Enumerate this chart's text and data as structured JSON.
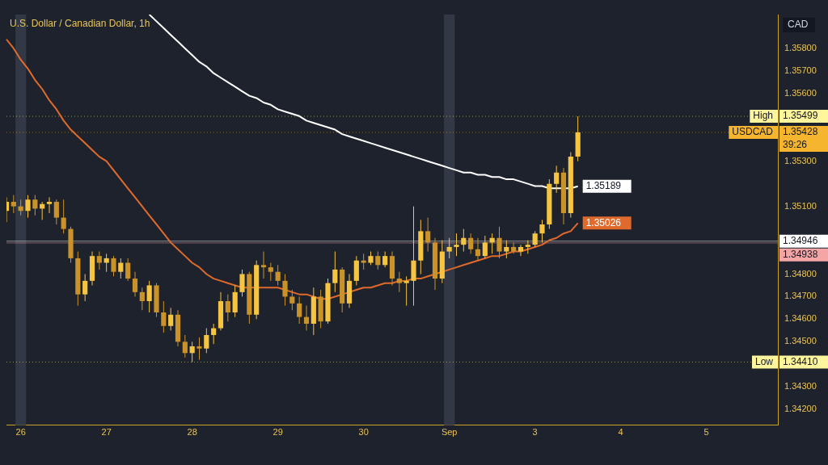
{
  "chart_data": {
    "type": "candlestick",
    "title": "U.S. Dollar / Canadian Dollar, 1h",
    "ylabel": "CAD",
    "categories": [
      null,
      null,
      "26",
      null,
      null,
      null,
      null,
      null,
      null,
      null,
      null,
      null,
      null,
      null,
      "27",
      null,
      null,
      null,
      null,
      null,
      null,
      null,
      null,
      null,
      null,
      null,
      "28",
      null,
      null,
      null,
      null,
      null,
      null,
      null,
      null,
      null,
      null,
      null,
      "29",
      null,
      null,
      null,
      null,
      null,
      null,
      null,
      null,
      null,
      null,
      null,
      "30",
      null,
      null,
      null,
      null,
      null,
      null,
      null,
      null,
      null,
      null,
      null,
      "Sep",
      null,
      null,
      null,
      null,
      null,
      null,
      null,
      null,
      null,
      null,
      null,
      "3",
      null,
      null,
      null,
      null,
      null,
      null,
      null,
      null,
      null,
      null,
      null,
      "4",
      null,
      null,
      null,
      null,
      null,
      null,
      null,
      null,
      null,
      null,
      null,
      "5",
      null,
      null,
      null,
      null,
      null,
      null,
      null,
      null,
      null,
      null
    ],
    "ohlc": [
      [
        1.3508,
        1.3514,
        1.3503,
        1.3512
      ],
      [
        1.3512,
        1.3515,
        1.3507,
        1.351
      ],
      [
        1.351,
        1.3513,
        1.3506,
        1.3508
      ],
      [
        1.3508,
        1.3515,
        1.3505,
        1.3513
      ],
      [
        1.3513,
        1.3515,
        1.3506,
        1.3509
      ],
      [
        1.3509,
        1.3512,
        1.3504,
        1.3511
      ],
      [
        1.3511,
        1.3514,
        1.3507,
        1.3512
      ],
      [
        1.3512,
        1.3513,
        1.3502,
        1.3505
      ],
      [
        1.3505,
        1.3513,
        1.3498,
        1.35
      ],
      [
        1.35,
        1.3501,
        1.3485,
        1.3487
      ],
      [
        1.3487,
        1.349,
        1.3466,
        1.3471
      ],
      [
        1.3471,
        1.348,
        1.3468,
        1.3477
      ],
      [
        1.3477,
        1.349,
        1.3475,
        1.3488
      ],
      [
        1.3488,
        1.349,
        1.3482,
        1.3485
      ],
      [
        1.3485,
        1.3489,
        1.3481,
        1.3487
      ],
      [
        1.3487,
        1.3488,
        1.3479,
        1.3481
      ],
      [
        1.3481,
        1.3487,
        1.3478,
        1.3485
      ],
      [
        1.3485,
        1.3487,
        1.3477,
        1.3478
      ],
      [
        1.3478,
        1.3481,
        1.347,
        1.3472
      ],
      [
        1.3472,
        1.3474,
        1.3464,
        1.3468
      ],
      [
        1.3468,
        1.3477,
        1.3463,
        1.3475
      ],
      [
        1.3475,
        1.3476,
        1.3461,
        1.3463
      ],
      [
        1.3463,
        1.3468,
        1.3454,
        1.3457
      ],
      [
        1.3457,
        1.3465,
        1.3455,
        1.3462
      ],
      [
        1.3462,
        1.3464,
        1.3448,
        1.345
      ],
      [
        1.345,
        1.3453,
        1.3443,
        1.3445
      ],
      [
        1.3445,
        1.345,
        1.3441,
        1.3448
      ],
      [
        1.3448,
        1.3452,
        1.3442,
        1.3447
      ],
      [
        1.3447,
        1.3456,
        1.3445,
        1.3453
      ],
      [
        1.3453,
        1.3458,
        1.3449,
        1.3456
      ],
      [
        1.3456,
        1.3472,
        1.3455,
        1.3468
      ],
      [
        1.3468,
        1.3471,
        1.3459,
        1.3463
      ],
      [
        1.3463,
        1.3475,
        1.3461,
        1.3472
      ],
      [
        1.3472,
        1.3482,
        1.347,
        1.348
      ],
      [
        1.348,
        1.3481,
        1.3458,
        1.3462
      ],
      [
        1.3462,
        1.3486,
        1.346,
        1.3484
      ],
      [
        1.3484,
        1.349,
        1.3478,
        1.3483
      ],
      [
        1.3483,
        1.3485,
        1.3477,
        1.3481
      ],
      [
        1.3481,
        1.3484,
        1.3475,
        1.3477
      ],
      [
        1.3477,
        1.348,
        1.3466,
        1.347
      ],
      [
        1.347,
        1.3473,
        1.3464,
        1.3467
      ],
      [
        1.3467,
        1.347,
        1.3458,
        1.3461
      ],
      [
        1.3461,
        1.3466,
        1.3455,
        1.3458
      ],
      [
        1.3458,
        1.3474,
        1.3453,
        1.347
      ],
      [
        1.347,
        1.3473,
        1.3456,
        1.3459
      ],
      [
        1.3459,
        1.3478,
        1.3458,
        1.3476
      ],
      [
        1.3476,
        1.349,
        1.3472,
        1.3482
      ],
      [
        1.3482,
        1.3483,
        1.3463,
        1.3467
      ],
      [
        1.3467,
        1.348,
        1.3465,
        1.3477
      ],
      [
        1.3477,
        1.3488,
        1.3475,
        1.3486
      ],
      [
        1.3486,
        1.3489,
        1.3482,
        1.3485
      ],
      [
        1.3485,
        1.349,
        1.3484,
        1.3488
      ],
      [
        1.3488,
        1.349,
        1.3482,
        1.3484
      ],
      [
        1.3484,
        1.349,
        1.3483,
        1.3488
      ],
      [
        1.3488,
        1.349,
        1.3475,
        1.3478
      ],
      [
        1.3478,
        1.3481,
        1.3472,
        1.3476
      ],
      [
        1.3476,
        1.3479,
        1.3466,
        1.3477
      ],
      [
        1.3477,
        1.351,
        1.3466,
        1.3486
      ],
      [
        1.3486,
        1.3504,
        1.348,
        1.3499
      ],
      [
        1.3499,
        1.3505,
        1.349,
        1.3494
      ],
      [
        1.3494,
        1.3496,
        1.3473,
        1.3478
      ],
      [
        1.3478,
        1.3495,
        1.3476,
        1.349
      ],
      [
        1.349,
        1.3496,
        1.3487,
        1.3492
      ],
      [
        1.3492,
        1.3498,
        1.3488,
        1.3493
      ],
      [
        1.3493,
        1.35,
        1.349,
        1.3496
      ],
      [
        1.3496,
        1.3498,
        1.3489,
        1.3491
      ],
      [
        1.3491,
        1.3496,
        1.3486,
        1.3488
      ],
      [
        1.3488,
        1.3497,
        1.3487,
        1.3494
      ],
      [
        1.3494,
        1.3498,
        1.3489,
        1.3496
      ],
      [
        1.3496,
        1.3501,
        1.3487,
        1.349
      ],
      [
        1.349,
        1.3495,
        1.3487,
        1.3492
      ],
      [
        1.3492,
        1.3494,
        1.3489,
        1.349
      ],
      [
        1.349,
        1.3493,
        1.3488,
        1.3492
      ],
      [
        1.3492,
        1.3495,
        1.3489,
        1.3493
      ],
      [
        1.3493,
        1.3499,
        1.3492,
        1.3498
      ],
      [
        1.3498,
        1.3504,
        1.3494,
        1.3502
      ],
      [
        1.3502,
        1.3522,
        1.35,
        1.352
      ],
      [
        1.352,
        1.3528,
        1.3516,
        1.3525
      ],
      [
        1.3525,
        1.3527,
        1.3502,
        1.3507
      ],
      [
        1.3507,
        1.3534,
        1.3505,
        1.3532
      ],
      [
        1.3532,
        1.35499,
        1.353,
        1.35428
      ],
      null,
      null,
      null,
      null,
      null,
      null,
      null,
      null,
      null,
      null,
      null,
      null,
      null,
      null,
      null,
      null,
      null,
      null,
      null,
      null,
      null,
      null,
      null,
      null,
      null,
      null,
      null,
      null
    ],
    "colors": [
      "#f5c542",
      "#c9932a",
      "#c9932a",
      "#f5c542",
      "#c9932a",
      "#f5c542",
      "#f5c542",
      "#c9932a",
      "#c9932a",
      "#c9932a",
      "#c9932a",
      "#f5c542",
      "#f5c542",
      "#c9932a",
      "#f5c542",
      "#c9932a",
      "#f5c542",
      "#c9932a",
      "#c9932a",
      "#c9932a",
      "#f5c542",
      "#c9932a",
      "#c9932a",
      "#f5c542",
      "#c9932a",
      "#c9932a",
      "#f5c542",
      "#c9932a",
      "#f5c542",
      "#f5c542",
      "#f5c542",
      "#c9932a",
      "#f5c542",
      "#f5c542",
      "#c9932a",
      "#f5c542",
      "#c9932a",
      "#c9932a",
      "#c9932a",
      "#c9932a",
      "#c9932a",
      "#c9932a",
      "#c9932a",
      "#f5c542",
      "#c9932a",
      "#f5c542",
      "#f5c542",
      "#c9932a",
      "#f5c542",
      "#f5c542",
      "#c9932a",
      "#f5c542",
      "#c9932a",
      "#f5c542",
      "#c9932a",
      "#c9932a",
      "#f5c542",
      "#f5c542",
      "#f5c542",
      "#c9932a",
      "#c9932a",
      "#f5c542",
      "#f5c542",
      "#f5c542",
      "#f5c542",
      "#c9932a",
      "#c9932a",
      "#f5c542",
      "#f5c542",
      "#c9932a",
      "#f5c542",
      "#c9932a",
      "#f5c542",
      "#f5c542",
      "#f5c542",
      "#f5c542",
      "#f5c542",
      "#f5c542",
      "#c9932a",
      "#f5c542",
      "#f5c542",
      null,
      null,
      null,
      null,
      null,
      null,
      null,
      null,
      null,
      null,
      null,
      null,
      null,
      null,
      null,
      null,
      null,
      null,
      null,
      null,
      null,
      null,
      null,
      null,
      null,
      null,
      null,
      null
    ],
    "series": [
      {
        "type": "line",
        "color": "#e06a2c",
        "values": [
          1.3584,
          1.358,
          1.3575,
          1.3571,
          1.3566,
          1.3562,
          1.3557,
          1.3553,
          1.3548,
          1.3544,
          1.3541,
          1.3538,
          1.3535,
          1.3532,
          1.353,
          1.3526,
          1.3522,
          1.3518,
          1.3514,
          1.351,
          1.3506,
          1.3502,
          1.3498,
          1.3494,
          1.3491,
          1.3488,
          1.3485,
          1.3483,
          1.348,
          1.3478,
          1.3477,
          1.3476,
          1.3475,
          1.3474,
          1.3474,
          1.3474,
          1.3474,
          1.3474,
          1.3474,
          1.3473,
          1.3472,
          1.3471,
          1.3471,
          1.347,
          1.3469,
          1.3469,
          1.347,
          1.3471,
          1.3472,
          1.3473,
          1.3474,
          1.3474,
          1.3475,
          1.3476,
          1.3476,
          1.3477,
          1.3477,
          1.3478,
          1.3478,
          1.3479,
          1.348,
          1.3481,
          1.3482,
          1.3483,
          1.3484,
          1.3485,
          1.3486,
          1.3487,
          1.3488,
          1.3488,
          1.3489,
          1.349,
          1.349,
          1.3491,
          1.3492,
          1.3493,
          1.3495,
          1.3496,
          1.3498,
          1.3499,
          1.35026,
          null,
          null,
          null,
          null,
          null,
          null,
          null,
          null,
          null,
          null,
          null,
          null,
          null,
          null,
          null,
          null,
          null,
          null,
          null,
          null,
          null,
          null,
          null,
          null,
          null,
          null,
          null,
          null
        ],
        "value_labels": [
          null,
          null,
          null,
          null,
          null,
          null,
          null,
          null,
          null,
          null,
          null,
          null,
          null,
          null,
          null,
          null,
          null,
          null,
          null,
          null,
          null,
          null,
          null,
          null,
          null,
          null,
          null,
          null,
          null,
          null,
          null,
          null,
          null,
          null,
          null,
          null,
          null,
          null,
          null,
          null,
          null,
          null,
          null,
          null,
          null,
          null,
          null,
          null,
          null,
          null,
          null,
          null,
          null,
          null,
          null,
          null,
          null,
          null,
          null,
          null,
          null,
          null,
          null,
          null,
          null,
          null,
          null,
          null,
          null,
          null,
          null,
          null,
          null,
          null,
          null,
          null,
          null,
          null,
          null,
          null,
          "1.35026",
          null,
          null,
          null,
          null,
          null,
          null,
          null,
          null,
          null,
          null,
          null,
          null,
          null,
          null,
          null,
          null,
          null,
          null,
          null,
          null,
          null,
          null,
          null,
          null,
          null,
          null,
          null,
          null
        ]
      },
      {
        "type": "line",
        "color": "#ffffff",
        "values": [
          null,
          null,
          null,
          null,
          null,
          null,
          null,
          null,
          null,
          null,
          null,
          null,
          null,
          null,
          null,
          null,
          null,
          null,
          null,
          null,
          1.3595,
          1.3592,
          1.3589,
          1.3586,
          1.3583,
          1.358,
          1.3577,
          1.3574,
          1.3572,
          1.3569,
          1.3567,
          1.3565,
          1.3563,
          1.3561,
          1.3559,
          1.3558,
          1.3556,
          1.3555,
          1.3553,
          1.3552,
          1.3551,
          1.355,
          1.3548,
          1.3547,
          1.3546,
          1.3545,
          1.3544,
          1.3542,
          1.3541,
          1.354,
          1.3539,
          1.3538,
          1.3537,
          1.3536,
          1.3535,
          1.3534,
          1.3533,
          1.3532,
          1.3531,
          1.353,
          1.3529,
          1.3528,
          1.3527,
          1.3526,
          1.3525,
          1.3525,
          1.3524,
          1.3524,
          1.3523,
          1.3523,
          1.3522,
          1.3522,
          1.3521,
          1.352,
          1.3519,
          1.3519,
          1.3518,
          1.3518,
          1.3518,
          1.3518,
          1.35189,
          null,
          null,
          null,
          null,
          null,
          null,
          null,
          null,
          null,
          null,
          null,
          null,
          null,
          null,
          null,
          null,
          null,
          null,
          null,
          null,
          null,
          null,
          null,
          null,
          null,
          null,
          null,
          null
        ],
        "value_labels": [
          null,
          null,
          null,
          null,
          null,
          null,
          null,
          null,
          null,
          null,
          null,
          null,
          null,
          null,
          null,
          null,
          null,
          null,
          null,
          null,
          null,
          null,
          null,
          null,
          null,
          null,
          null,
          null,
          null,
          null,
          null,
          null,
          null,
          null,
          null,
          null,
          null,
          null,
          null,
          null,
          null,
          null,
          null,
          null,
          null,
          null,
          null,
          null,
          null,
          null,
          null,
          null,
          null,
          null,
          null,
          null,
          null,
          null,
          null,
          null,
          null,
          null,
          null,
          null,
          null,
          null,
          null,
          null,
          null,
          null,
          null,
          null,
          null,
          null,
          null,
          null,
          null,
          null,
          null,
          null,
          "1.35189",
          null,
          null,
          null,
          null,
          null,
          null,
          null,
          null,
          null,
          null,
          null,
          null,
          null,
          null,
          null,
          null,
          null,
          null,
          null,
          null,
          null,
          null,
          null,
          null,
          null,
          null,
          null,
          null
        ]
      }
    ],
    "ylim": [
      1.3413,
      1.3595
    ],
    "yticks": [
      {
        "value": 1.342,
        "label": "1.34200"
      },
      {
        "value": 1.343,
        "label": "1.34300"
      },
      {
        "value": 1.345,
        "label": "1.34500"
      },
      {
        "value": 1.346,
        "label": "1.34600"
      },
      {
        "value": 1.347,
        "label": "1.34700"
      },
      {
        "value": 1.348,
        "label": "1.34800"
      },
      {
        "value": 1.351,
        "label": "1.35100"
      },
      {
        "value": 1.353,
        "label": "1.35300"
      },
      {
        "value": 1.356,
        "label": "1.35600"
      },
      {
        "value": 1.357,
        "label": "1.35700"
      },
      {
        "value": 1.358,
        "label": "1.35800"
      },
      {
        "value": 1.35499,
        "label": "1.35499"
      },
      {
        "value": 1.35428,
        "label": "1.35428"
      },
      {
        "value": 1.3441,
        "label": "1.34410"
      }
    ],
    "ref_lines": [
      {
        "axis": "y",
        "value": 1.35499,
        "label": "High",
        "color": "#fff59d",
        "line_style": "dotted"
      },
      {
        "axis": "y",
        "value": 1.35428,
        "label": "USDCAD",
        "color": "#f5b52e",
        "line_style": "dotted"
      },
      {
        "axis": "y",
        "value": 1.34946,
        "label": "1.34946",
        "color": "#ffffff",
        "line_style": "solid"
      },
      {
        "axis": "y",
        "value": 1.34938,
        "label": "1.34938",
        "color": "#f4a6a6",
        "line_style": "solid"
      },
      {
        "axis": "y",
        "value": 1.3441,
        "label": "Low",
        "color": "#fff59d",
        "line_style": "dotted"
      }
    ],
    "bands": [
      {
        "axis": "x",
        "from": "26",
        "to": "26",
        "color": "#333846"
      },
      {
        "axis": "x",
        "from": "Sep",
        "to": "Sep",
        "color": "#333846"
      }
    ],
    "annotations": [
      "39:26"
    ]
  }
}
